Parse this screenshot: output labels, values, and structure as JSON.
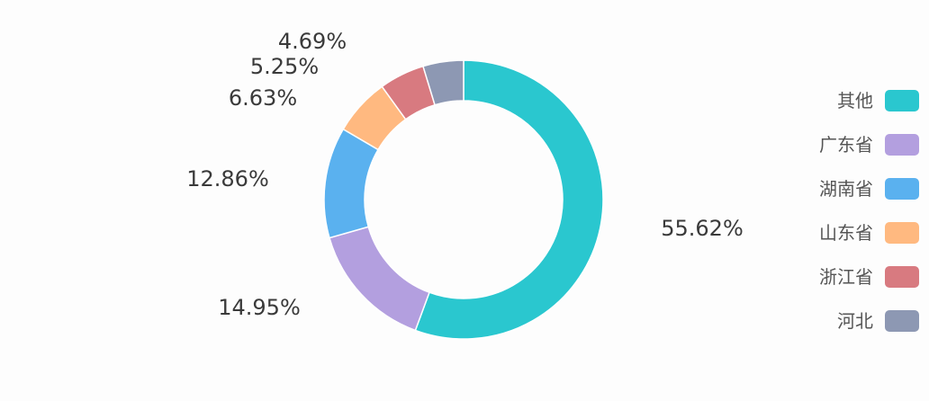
{
  "chart_data": {
    "type": "pie",
    "variant": "donut",
    "title": "",
    "legend_position": "right",
    "series": [
      {
        "name": "其他",
        "value": 55.62,
        "label": "55.62%",
        "color": "#2ac7cf"
      },
      {
        "name": "广东省",
        "value": 14.95,
        "label": "14.95%",
        "color": "#b39fdf"
      },
      {
        "name": "湖南省",
        "value": 12.86,
        "label": "12.86%",
        "color": "#5ab1ef"
      },
      {
        "name": "山东省",
        "value": 6.63,
        "label": "6.63%",
        "color": "#ffb980"
      },
      {
        "name": "浙江省",
        "value": 5.25,
        "label": "5.25%",
        "color": "#d87a80"
      },
      {
        "name": "河北",
        "value": 4.69,
        "label": "4.69%",
        "color": "#8d98b3"
      }
    ]
  }
}
